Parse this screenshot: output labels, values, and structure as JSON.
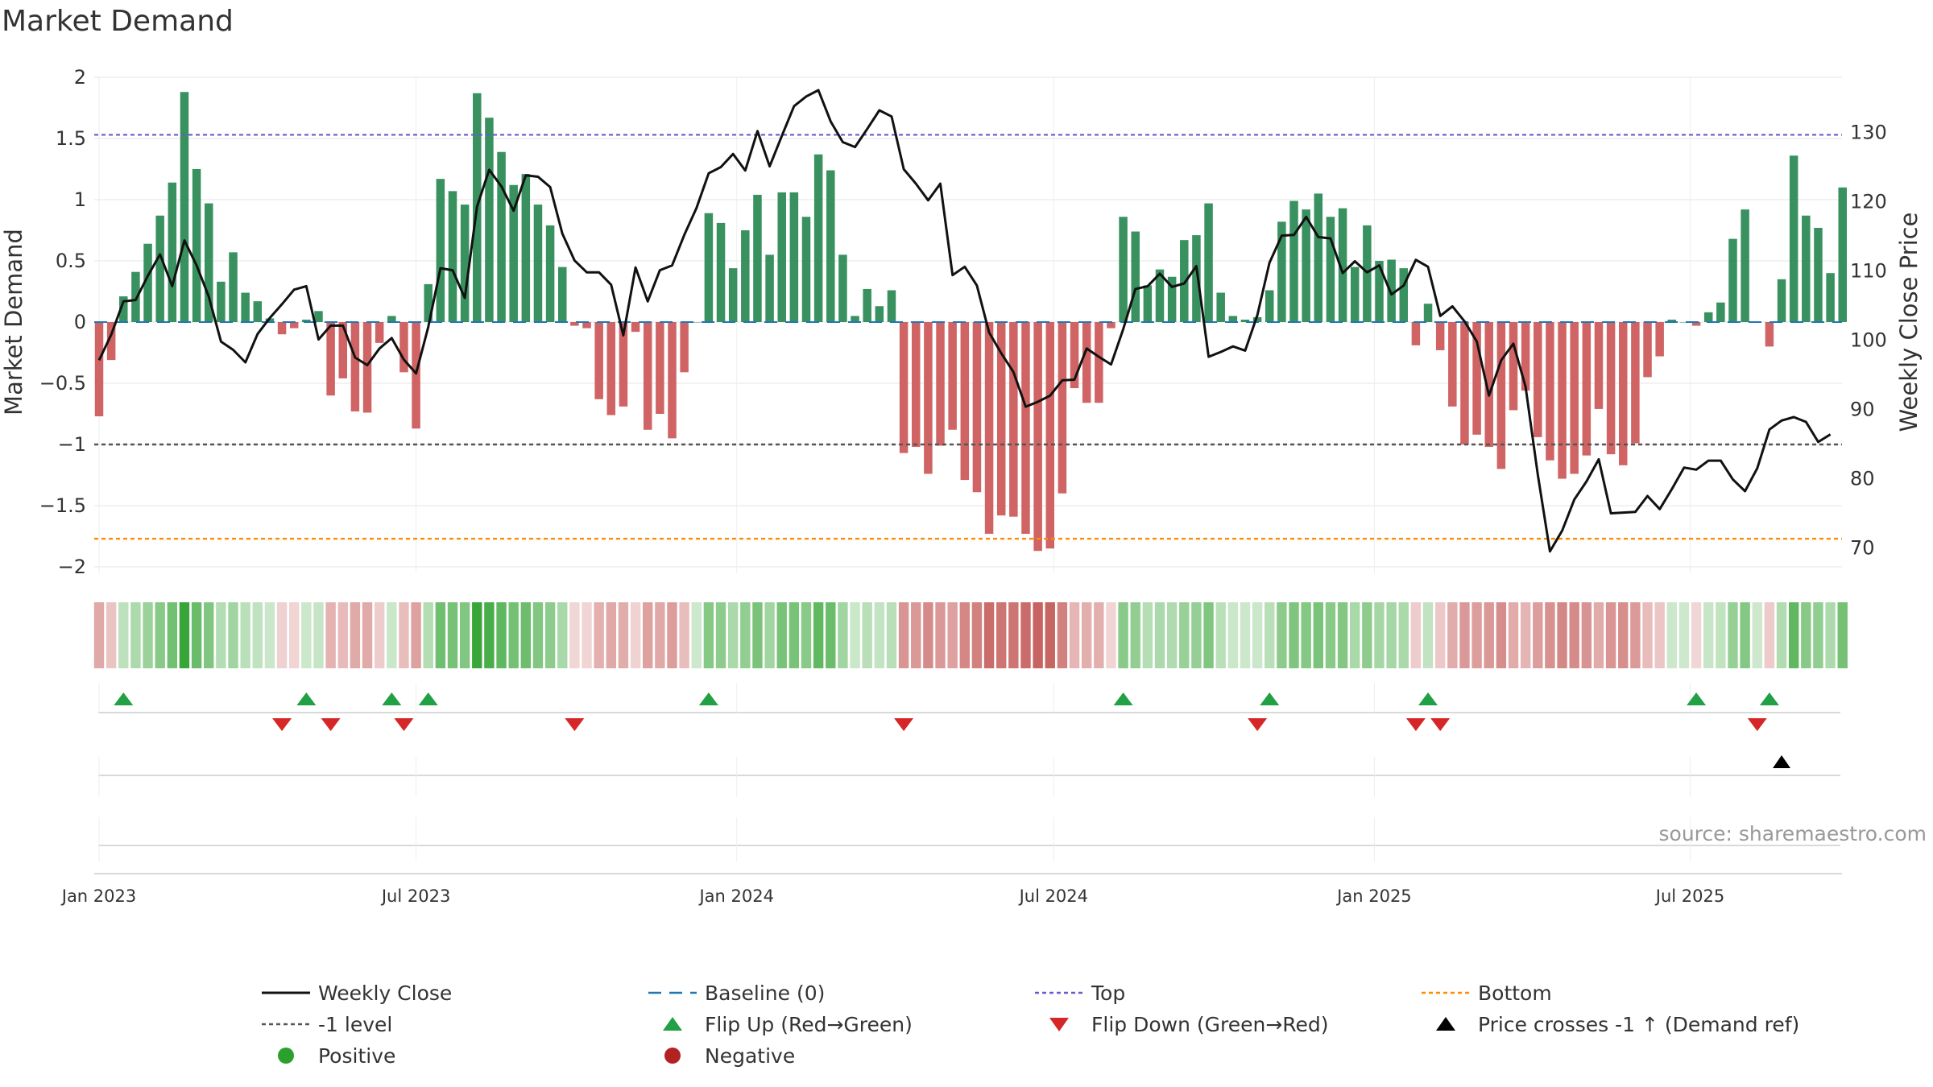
{
  "title": "Market Demand",
  "source": "source: sharemaestro.com",
  "colors": {
    "positive": "#2e8b57",
    "negative": "#cd5c5c",
    "price": "#111111",
    "baseline": "#1f77b4",
    "top": "#6a5acd",
    "bottom": "#ff8c00",
    "minus_one": "#555555",
    "flip_up": "#22a045",
    "flip_down": "#d62728",
    "price_cross": "#000000",
    "dot_positive": "#2ca02c",
    "dot_negative": "#b22222"
  },
  "chart_data": {
    "type": "bar",
    "title": "Market Demand",
    "ylabel": "Market Demand",
    "y2label": "Weekly Close Price",
    "ylim": [
      -2.05,
      2.05
    ],
    "y2lim": [
      67.3,
      140.5
    ],
    "yticks": [
      {
        "v": 2,
        "label": "2"
      },
      {
        "v": 1.5,
        "label": "1.5"
      },
      {
        "v": 1,
        "label": "1"
      },
      {
        "v": 0.5,
        "label": "0.5"
      },
      {
        "v": 0,
        "label": "0"
      },
      {
        "v": -0.5,
        "label": "−0.5"
      },
      {
        "v": -1,
        "label": "−1"
      },
      {
        "v": -1.5,
        "label": "−1.5"
      },
      {
        "v": -2,
        "label": "−2"
      }
    ],
    "y2ticks": [
      {
        "v": 70,
        "label": "70"
      },
      {
        "v": 80,
        "label": "80"
      },
      {
        "v": 90,
        "label": "90"
      },
      {
        "v": 100,
        "label": "100"
      },
      {
        "v": 110,
        "label": "110"
      },
      {
        "v": 120,
        "label": "120"
      },
      {
        "v": 130,
        "label": "130"
      }
    ],
    "xticks": [
      {
        "week": 1,
        "label": "Jan 2023"
      },
      {
        "week": 27,
        "label": "Jul 2023"
      },
      {
        "week": 53.3,
        "label": "Jan 2024"
      },
      {
        "week": 79.3,
        "label": "Jul 2024"
      },
      {
        "week": 105.6,
        "label": "Jan 2025"
      },
      {
        "week": 131.5,
        "label": "Jul 2025"
      }
    ],
    "reference_lines": {
      "top": 1.53,
      "bottom": -1.77,
      "minus_one": -1,
      "baseline": 0
    },
    "demand": [
      -0.77,
      -0.31,
      0.21,
      0.41,
      0.64,
      0.87,
      1.14,
      1.88,
      1.25,
      0.97,
      0.33,
      0.57,
      0.24,
      0.17,
      0.03,
      -0.1,
      -0.05,
      0.02,
      0.09,
      -0.6,
      -0.46,
      -0.73,
      -0.74,
      -0.17,
      0.05,
      -0.41,
      -0.87,
      0.31,
      1.17,
      1.07,
      0.96,
      1.87,
      1.67,
      1.39,
      1.12,
      1.21,
      0.96,
      0.79,
      0.45,
      -0.03,
      -0.05,
      -0.63,
      -0.76,
      -0.69,
      -0.08,
      -0.88,
      -0.75,
      -0.95,
      -0.41,
      0.0,
      0.89,
      0.81,
      0.44,
      0.75,
      1.04,
      0.55,
      1.06,
      1.06,
      0.86,
      1.37,
      1.24,
      0.55,
      0.05,
      0.27,
      0.13,
      0.26,
      -1.07,
      -1.02,
      -1.24,
      -1.01,
      -0.88,
      -1.29,
      -1.39,
      -1.73,
      -1.58,
      -1.59,
      -1.73,
      -1.87,
      -1.85,
      -1.4,
      -0.54,
      -0.66,
      -0.66,
      -0.05,
      0.86,
      0.74,
      0.3,
      0.43,
      0.37,
      0.67,
      0.71,
      0.97,
      0.24,
      0.05,
      0.02,
      0.04,
      0.26,
      0.82,
      0.99,
      0.92,
      1.05,
      0.86,
      0.93,
      0.45,
      0.79,
      0.5,
      0.51,
      0.44,
      -0.19,
      0.15,
      -0.23,
      -0.69,
      -1.0,
      -0.92,
      -1.02,
      -1.2,
      -0.72,
      -0.56,
      -0.94,
      -1.13,
      -1.28,
      -1.24,
      -1.09,
      -0.71,
      -1.08,
      -1.17,
      -0.99,
      -0.45,
      -0.28,
      0.02,
      0.0,
      -0.03,
      0.08,
      0.16,
      0.68,
      0.92,
      0.0,
      -0.2,
      0.35,
      1.36,
      0.87,
      0.77,
      0.4,
      1.1
    ],
    "price": [
      97.1,
      100.8,
      105.6,
      105.8,
      109.3,
      112.4,
      107.8,
      114.4,
      110.8,
      106.3,
      99.8,
      98.6,
      96.8,
      100.9,
      103.2,
      105.2,
      107.3,
      107.8,
      100.1,
      102.1,
      102.1,
      97.5,
      96.4,
      98.8,
      100.3,
      97.2,
      95.2,
      101.9,
      110.4,
      110.1,
      106.1,
      119.3,
      124.6,
      122.2,
      118.7,
      123.8,
      123.6,
      122.1,
      115.4,
      111.5,
      109.8,
      109.8,
      108.0,
      100.7,
      110.5,
      105.6,
      110.1,
      110.8,
      115.2,
      119.1,
      124.1,
      125.0,
      126.9,
      124.5,
      130.2,
      125.1,
      129.5,
      133.8,
      135.2,
      136.1,
      131.6,
      128.6,
      127.9,
      130.5,
      133.2,
      132.3,
      124.7,
      122.6,
      120.2,
      122.6,
      109.4,
      110.6,
      107.9,
      101.1,
      98.1,
      95.4,
      90.4,
      91.1,
      92.0,
      94.2,
      94.3,
      98.8,
      97.6,
      96.5,
      101.6,
      107.4,
      107.8,
      109.6,
      107.7,
      108.2,
      110.7,
      97.6,
      98.3,
      99.1,
      98.5,
      103.6,
      111.2,
      115.1,
      115.2,
      117.8,
      114.9,
      114.7,
      109.7,
      111.4,
      109.8,
      110.8,
      106.6,
      107.9,
      111.6,
      110.6,
      103.5,
      104.9,
      102.7,
      99.8,
      92.0,
      97.1,
      99.5,
      93.3,
      80.6,
      69.5,
      72.5,
      77.0,
      79.6,
      82.8,
      75.0,
      75.1,
      75.2,
      77.5,
      75.6,
      78.5,
      81.6,
      81.3,
      82.6,
      82.6,
      79.9,
      78.2,
      81.5,
      87.1,
      88.4,
      88.9,
      88.2,
      85.3,
      86.4
    ],
    "flip_up_weeks": [
      3,
      18,
      25,
      28,
      51,
      85,
      97,
      110,
      132,
      138
    ],
    "flip_down_weeks": [
      16,
      20,
      26,
      40,
      67,
      96,
      109,
      111,
      137
    ],
    "price_cross_weeks": [
      139
    ]
  },
  "legend": [
    {
      "key": "weekly_close",
      "label": "Weekly Close"
    },
    {
      "key": "baseline",
      "label": "Baseline (0)"
    },
    {
      "key": "top",
      "label": "Top"
    },
    {
      "key": "bottom",
      "label": "Bottom"
    },
    {
      "key": "minus_one",
      "label": "-1 level"
    },
    {
      "key": "flip_up",
      "label": "Flip Up (Red→Green)"
    },
    {
      "key": "flip_down",
      "label": "Flip Down (Green→Red)"
    },
    {
      "key": "price_cross",
      "label": "Price crosses -1 ↑ (Demand ref)"
    },
    {
      "key": "positive",
      "label": "Positive"
    },
    {
      "key": "negative",
      "label": "Negative"
    }
  ]
}
